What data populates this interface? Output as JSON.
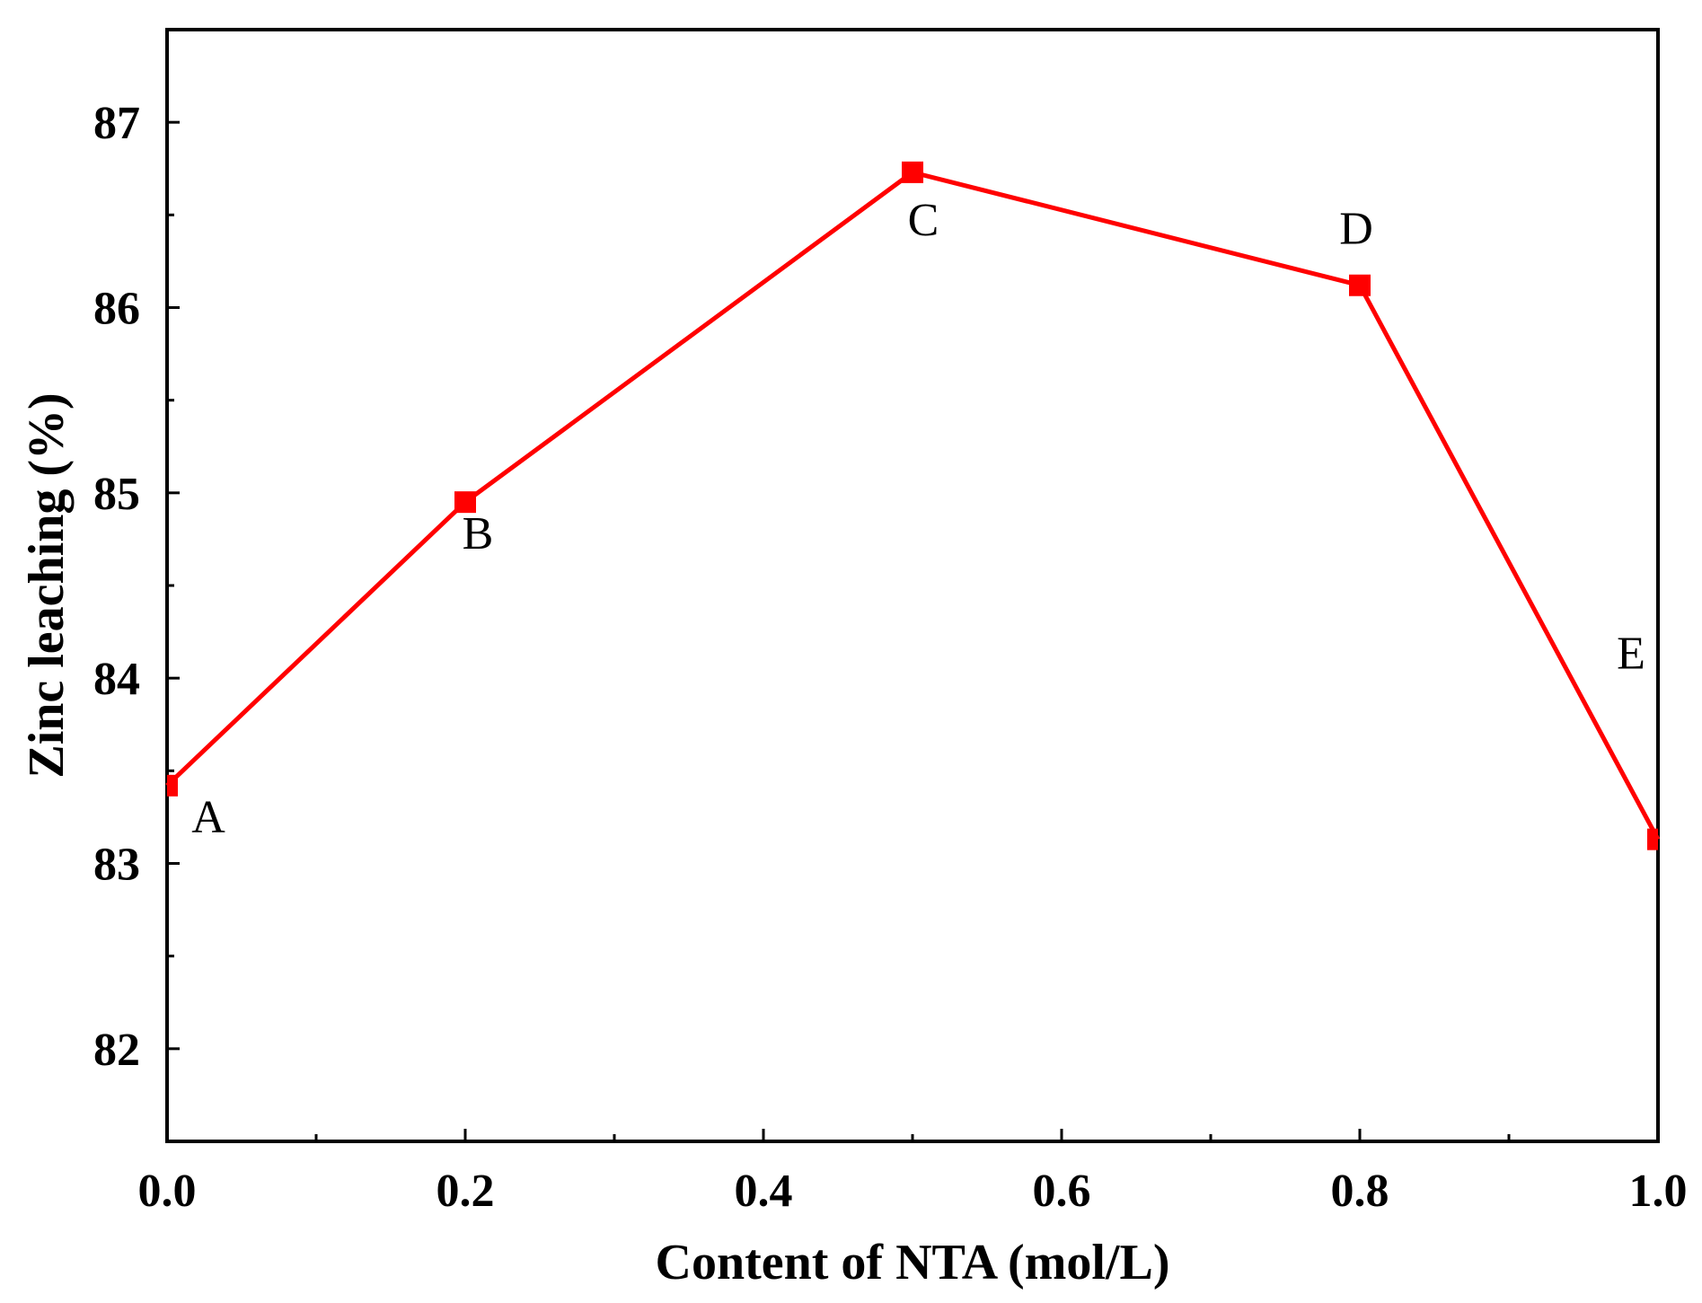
{
  "chart_data": {
    "type": "line",
    "title": "",
    "xlabel": "Content of NTA (mol/L)",
    "ylabel": "Zinc leaching (%)",
    "xlim": [
      0.0,
      1.0
    ],
    "ylim": [
      81.5,
      87.5
    ],
    "x_ticks": [
      0.0,
      0.2,
      0.4,
      0.6,
      0.8,
      1.0
    ],
    "x_tick_labels": [
      "0.0",
      "0.2",
      "0.4",
      "0.6",
      "0.8",
      "1.0"
    ],
    "y_ticks": [
      82,
      83,
      84,
      85,
      86,
      87
    ],
    "y_tick_labels": [
      "82",
      "83",
      "84",
      "85",
      "86",
      "87"
    ],
    "grid": false,
    "series": [
      {
        "name": "Zinc leaching",
        "color": "#ff0000",
        "marker": "square",
        "x": [
          0.0,
          0.2,
          0.5,
          0.8,
          1.0
        ],
        "values": [
          83.42,
          84.95,
          86.73,
          86.12,
          83.13
        ],
        "point_labels": [
          "A",
          "B",
          "C",
          "D",
          "E"
        ]
      }
    ]
  }
}
